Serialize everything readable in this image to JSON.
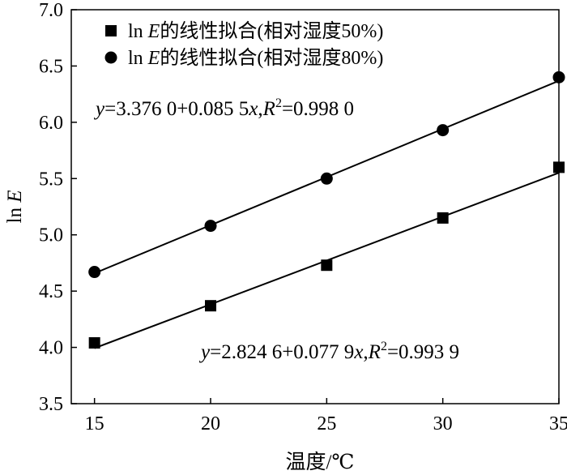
{
  "chart_data": {
    "type": "scatter",
    "xlabel": "温度/℃",
    "ylabel_prefix": "ln ",
    "ylabel_var": "E",
    "xlim": [
      14,
      35
    ],
    "ylim": [
      3.5,
      7.0
    ],
    "xticks": [
      15,
      20,
      25,
      30,
      35
    ],
    "yticks": [
      3.5,
      4.0,
      4.5,
      5.0,
      5.5,
      6.0,
      6.5,
      7.0
    ],
    "xtick_labels": [
      "15",
      "20",
      "25",
      "30",
      "35"
    ],
    "ytick_labels": [
      "3.5",
      "4.0",
      "4.5",
      "5.0",
      "5.5",
      "6.0",
      "6.5",
      "7.0"
    ],
    "grid": false,
    "legend_position": "top-left",
    "series": [
      {
        "legend_pre": "ln ",
        "legend_var": "E",
        "legend_post": "的线性拟合(相对湿度50%)",
        "marker": "square",
        "x": [
          15,
          20,
          25,
          30,
          35
        ],
        "y": [
          4.04,
          4.37,
          4.73,
          5.15,
          5.6
        ],
        "fit": {
          "intercept": 2.8246,
          "slope": 0.0779
        },
        "equation": {
          "y": "y",
          "mid": "=2.824 6+0.077 9",
          "x": "x",
          "comma": ",",
          "R": "R",
          "sup": "2",
          "tail": "=0.993 9"
        }
      },
      {
        "legend_pre": "ln ",
        "legend_var": "E",
        "legend_post": "的线性拟合(相对湿度80%)",
        "marker": "circle",
        "x": [
          15,
          20,
          25,
          30,
          35
        ],
        "y": [
          4.67,
          5.08,
          5.5,
          5.93,
          6.4
        ],
        "fit": {
          "intercept": 3.376,
          "slope": 0.0855
        },
        "equation": {
          "y": "y",
          "mid": "=3.376 0+0.085 5",
          "x": "x",
          "comma": ",",
          "R": "R",
          "sup": "2",
          "tail": "=0.998 0"
        }
      }
    ]
  }
}
